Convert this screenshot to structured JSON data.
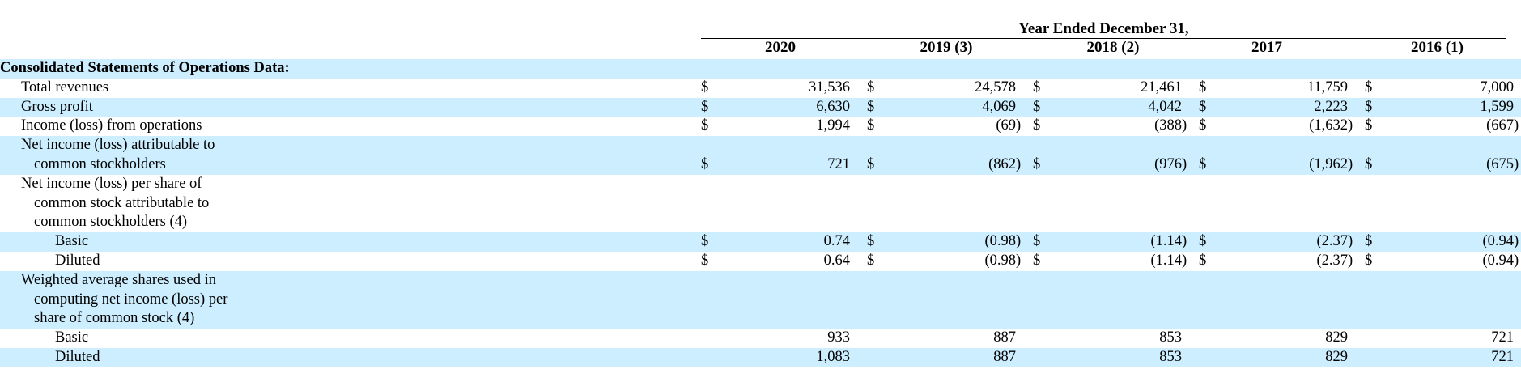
{
  "table": {
    "group_header": "Year Ended December 31,",
    "columns": [
      "2020",
      "2019 (3)",
      "2018 (2)",
      "2017",
      "2016 (1)"
    ],
    "currency_symbol": "$",
    "section_title": "Consolidated Statements of Operations Data:",
    "rows": [
      {
        "label": "Total revenues",
        "show_dollar": true,
        "values": [
          "31,536",
          "24,578",
          "21,461",
          "11,759",
          "7,000"
        ],
        "suffix": [
          "",
          "",
          "",
          "",
          ""
        ]
      },
      {
        "label": "Gross profit",
        "show_dollar": true,
        "values": [
          "6,630",
          "4,069",
          "4,042",
          "2,223",
          "1,599"
        ],
        "suffix": [
          "",
          "",
          "",
          "",
          ""
        ]
      },
      {
        "label": "Income (loss) from operations",
        "show_dollar": true,
        "values": [
          "1,994",
          "(69",
          "(388",
          "(1,632",
          "(667"
        ],
        "suffix": [
          "",
          ")",
          ")",
          ")",
          ")"
        ]
      },
      {
        "label_lines": [
          "Net income (loss) attributable to",
          "common stockholders"
        ],
        "show_dollar": true,
        "values": [
          "721",
          "(862",
          "(976",
          "(1,962",
          "(675"
        ],
        "suffix": [
          "",
          ")",
          ")",
          ")",
          ")"
        ]
      },
      {
        "label_lines": [
          "Net income (loss) per share of",
          "common stock attributable to",
          "common stockholders (4)"
        ]
      },
      {
        "label": "Basic",
        "show_dollar": true,
        "values": [
          "0.74",
          "(0.98",
          "(1.14",
          "(2.37",
          "(0.94"
        ],
        "suffix": [
          "",
          ")",
          ")",
          ")",
          ")"
        ]
      },
      {
        "label": "Diluted",
        "show_dollar": true,
        "values": [
          "0.64",
          "(0.98",
          "(1.14",
          "(2.37",
          "(0.94"
        ],
        "suffix": [
          "",
          ")",
          ")",
          ")",
          ")"
        ]
      },
      {
        "label_lines": [
          "Weighted average shares used in",
          "computing net income (loss) per",
          "share of common stock (4)"
        ]
      },
      {
        "label": "Basic",
        "show_dollar": false,
        "values": [
          "933",
          "887",
          "853",
          "829",
          "721"
        ],
        "suffix": [
          "",
          "",
          "",
          "",
          ""
        ]
      },
      {
        "label": "Diluted",
        "show_dollar": false,
        "values": [
          "1,083",
          "887",
          "853",
          "829",
          "721"
        ],
        "suffix": [
          "",
          "",
          "",
          "",
          ""
        ]
      }
    ]
  }
}
